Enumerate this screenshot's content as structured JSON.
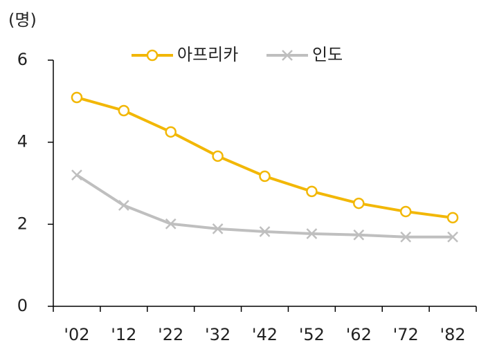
{
  "chart_data": {
    "type": "line",
    "y_axis_label": "(명)",
    "categories": [
      "'02",
      "'12",
      "'22",
      "'32",
      "'42",
      "'52",
      "'62",
      "'72",
      "'82"
    ],
    "series": [
      {
        "name": "아프리카",
        "color": "#f2b705",
        "marker": "circle",
        "values": [
          5.09,
          4.77,
          4.25,
          3.66,
          3.17,
          2.8,
          2.51,
          2.31,
          2.16
        ]
      },
      {
        "name": "인도",
        "color": "#bfbfbf",
        "marker": "x",
        "values": [
          3.2,
          2.46,
          2.01,
          1.89,
          1.82,
          1.77,
          1.74,
          1.69,
          1.69
        ]
      }
    ],
    "ylim": [
      0,
      6
    ],
    "yticks": [
      0,
      2,
      4,
      6
    ],
    "grid": false
  }
}
